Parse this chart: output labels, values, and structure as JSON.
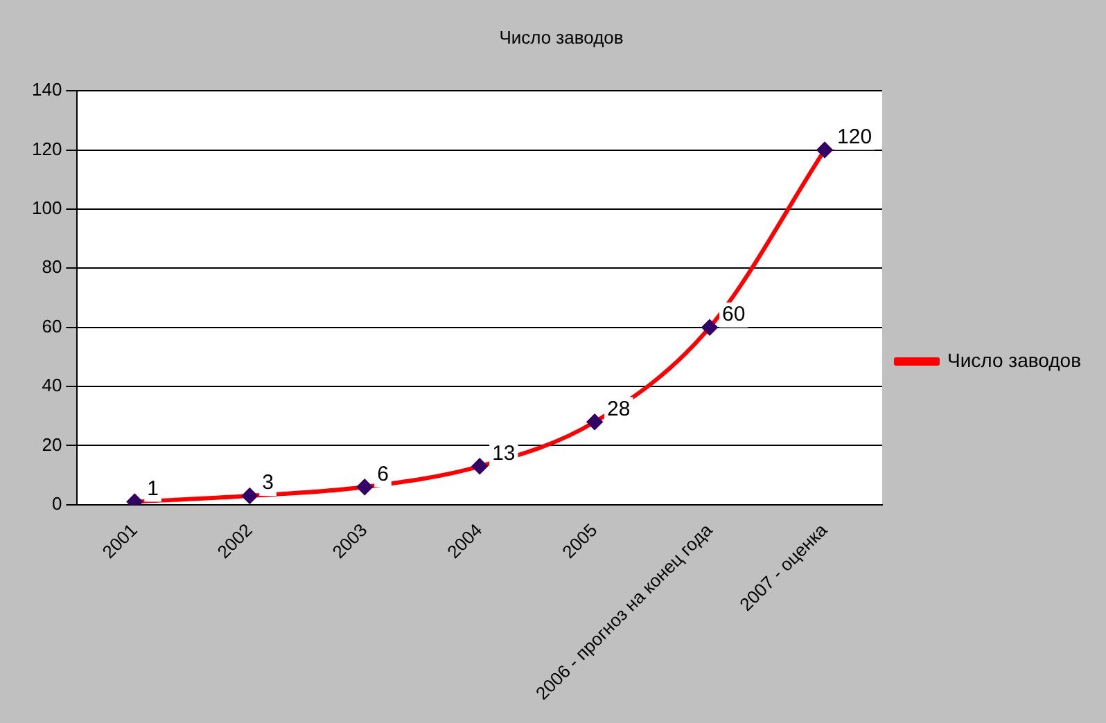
{
  "chart_data": {
    "type": "line",
    "title": "Число заводов",
    "categories": [
      "2001",
      "2002",
      "2003",
      "2004",
      "2005",
      "2006 - прогноз на конец года",
      "2007 - оценка"
    ],
    "series": [
      {
        "name": "Число заводов",
        "color": "#ff0000",
        "values": [
          1,
          3,
          6,
          13,
          28,
          60,
          120
        ]
      }
    ],
    "ylim": [
      0,
      140
    ],
    "yticks": [
      0,
      20,
      40,
      60,
      80,
      100,
      120,
      140
    ],
    "grid": "y",
    "legend": "right",
    "marker": "diamond",
    "data_labels": true
  }
}
